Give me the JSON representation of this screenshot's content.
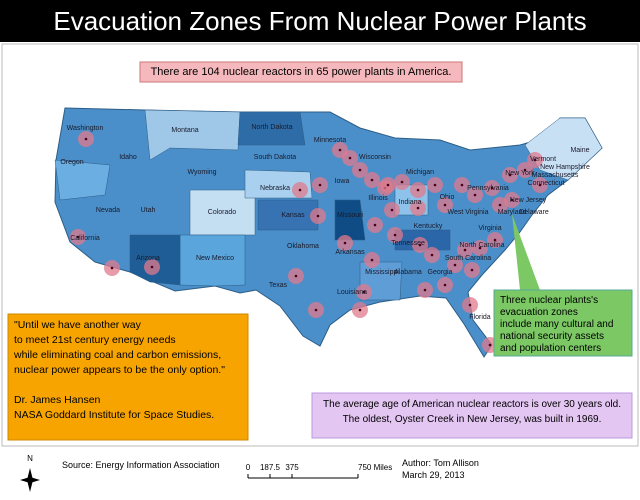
{
  "header": {
    "title": "Evacuation Zones From Nuclear Power Plants"
  },
  "annotations": {
    "reactors": "There are 104 nuclear reactors in 65 power plants in America.",
    "quote": [
      "\"Until we have another way",
      "to meet 21st century energy needs",
      "while eliminating coal and carbon emissions,",
      "nuclear power appears to be the only option.\"",
      "",
      "Dr. James Hansen",
      "NASA Goddard Institute for Space Studies."
    ],
    "green": [
      "Three nuclear plants's",
      "evacuation zones",
      "include many cultural and",
      "national security assets",
      "and population centers"
    ],
    "age": [
      "The average age of American nuclear reactors is over 30 years old.",
      "The oldest, Oyster Creek in New Jersey, was built in 1969."
    ]
  },
  "states": [
    "Washington",
    "Oregon",
    "Idaho",
    "Montana",
    "Wyoming",
    "Nevada",
    "Utah",
    "Colorado",
    "California",
    "Arizona",
    "New Mexico",
    "North Dakota",
    "South Dakota",
    "Nebraska",
    "Kansas",
    "Oklahoma",
    "Texas",
    "Minnesota",
    "Iowa",
    "Missouri",
    "Arkansas",
    "Louisiana",
    "Wisconsin",
    "Illinois",
    "Michigan",
    "Indiana",
    "Ohio",
    "Kentucky",
    "Tennessee",
    "Mississippi",
    "Alabama",
    "Georgia",
    "Florida",
    "South Carolina",
    "North Carolina",
    "Virginia",
    "West Virginia",
    "Pennsylvania",
    "New York",
    "Maryland",
    "Delaware",
    "New Jersey",
    "Connecticut",
    "Massachusetts",
    "Vermont",
    "New Hampshire",
    "Maine"
  ],
  "footer": {
    "compass": "N",
    "source": "Source: Energy Information Association",
    "scale": [
      "0",
      "187.5",
      "375",
      "750 Miles"
    ],
    "author": "Author: Tom Allison",
    "date": "March 29, 2013"
  }
}
